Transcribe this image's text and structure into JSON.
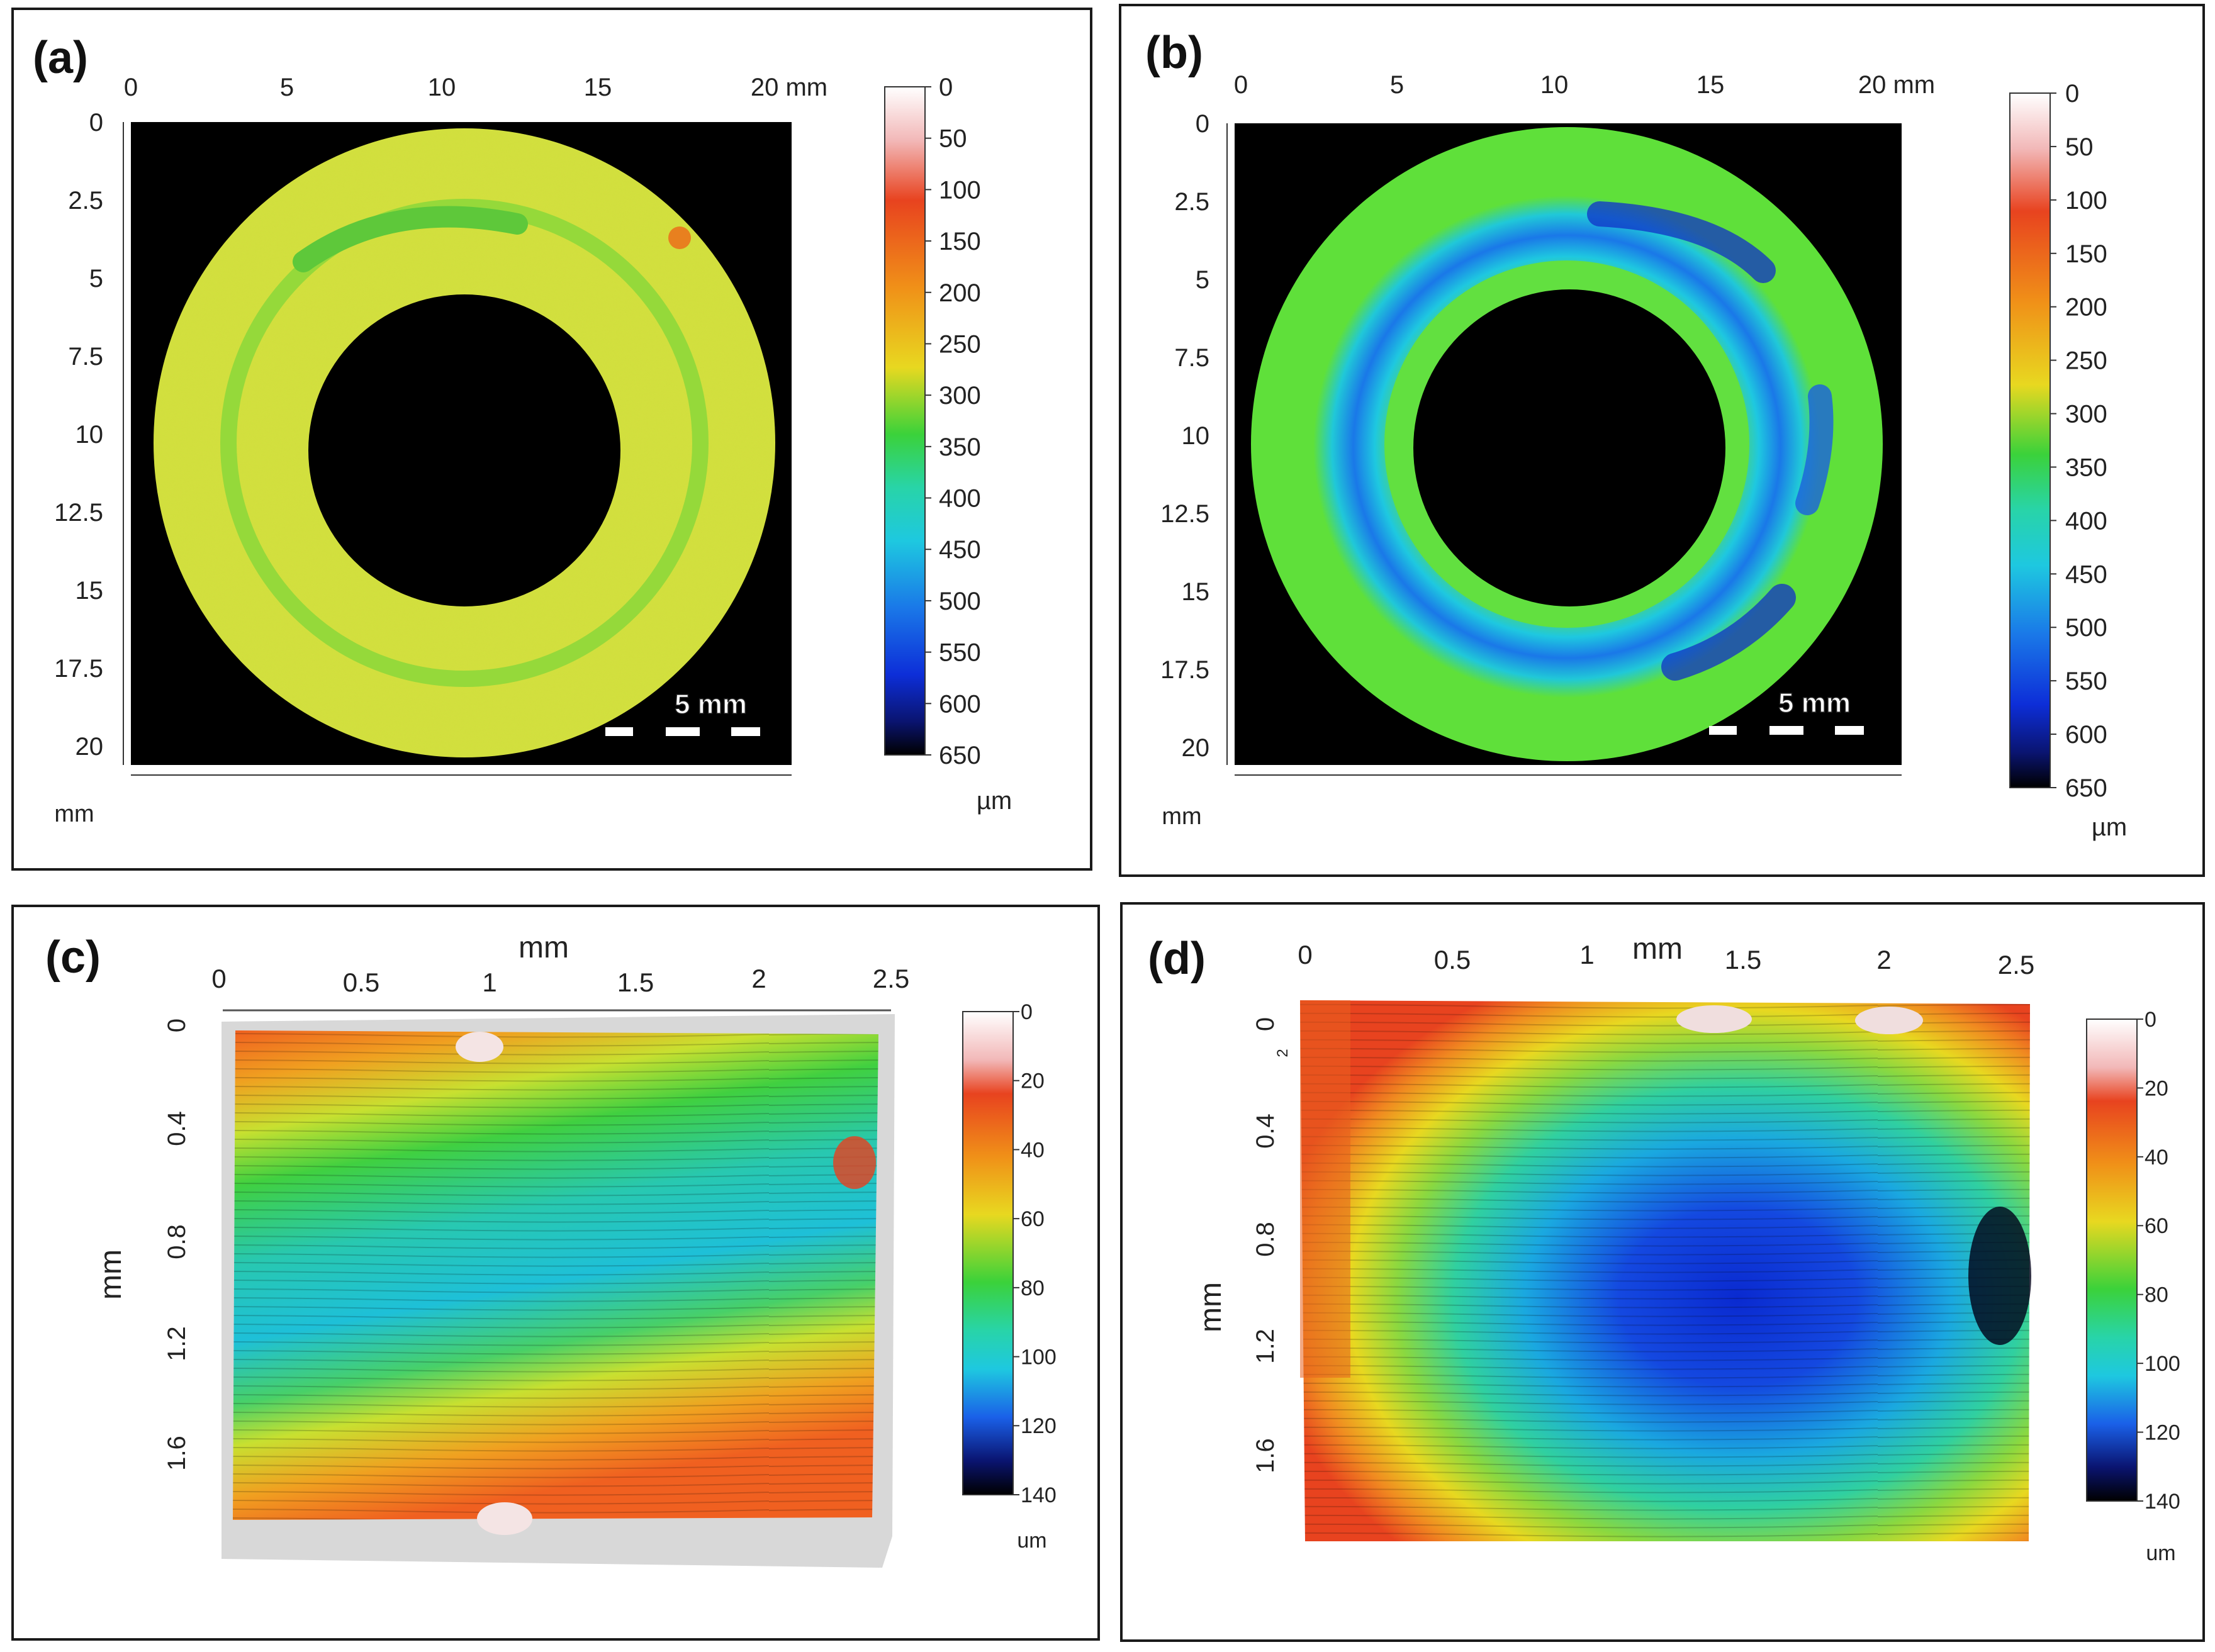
{
  "panels": [
    {
      "label": "(a)",
      "x_ticks": [
        "0",
        "5",
        "10",
        "15",
        "20 mm"
      ],
      "y_ticks": [
        "0",
        "2.5",
        "5",
        "7.5",
        "10",
        "12.5",
        "15",
        "17.5",
        "20"
      ],
      "y_unit": "mm",
      "scale_bar": "5 mm",
      "colorbar_ticks": [
        "0",
        "50",
        "100",
        "150",
        "200",
        "250",
        "300",
        "350",
        "400",
        "450",
        "500",
        "550",
        "600",
        "650"
      ],
      "colorbar_unit": "µm"
    },
    {
      "label": "(b)",
      "x_ticks": [
        "0",
        "5",
        "10",
        "15",
        "20 mm"
      ],
      "y_ticks": [
        "0",
        "2.5",
        "5",
        "7.5",
        "10",
        "12.5",
        "15",
        "17.5",
        "20"
      ],
      "y_unit": "mm",
      "scale_bar": "5 mm",
      "colorbar_ticks": [
        "0",
        "50",
        "100",
        "150",
        "200",
        "250",
        "300",
        "350",
        "400",
        "450",
        "500",
        "550",
        "600",
        "650"
      ],
      "colorbar_unit": "µm"
    },
    {
      "label": "(c)",
      "x_title": "mm",
      "x_ticks": [
        "0",
        "0.5",
        "1",
        "1.5",
        "2",
        "2.5"
      ],
      "y_title": "mm",
      "y_ticks": [
        "0",
        "0.4",
        "0.8",
        "1.2",
        "1.6"
      ],
      "colorbar_ticks": [
        "0",
        "20",
        "40",
        "60",
        "80",
        "100",
        "120",
        "140"
      ],
      "colorbar_unit": "um"
    },
    {
      "label": "(d)",
      "x_title": "mm",
      "x_ticks": [
        "0",
        "0.5",
        "1",
        "1.5",
        "2",
        "2.5"
      ],
      "y_title": "mm",
      "y_ticks": [
        "0",
        "0.4",
        "0.8",
        "1.2",
        "1.6"
      ],
      "y_extra_tick": "2",
      "colorbar_ticks": [
        "0",
        "20",
        "40",
        "60",
        "80",
        "100",
        "120",
        "140"
      ],
      "colorbar_unit": "um"
    }
  ],
  "colors": {
    "height_colormap": [
      "#f8f8f8",
      "#f2b8b8",
      "#e8431f",
      "#f09018",
      "#e8d820",
      "#cce63a",
      "#3bd23a",
      "#28d4a8",
      "#1ec8e0",
      "#1a78e8",
      "#0d2ed8",
      "#0a1470",
      "#000000"
    ],
    "surface_a": "#cce63a",
    "groove_a": "#8ed83a",
    "surface_b": "#6fe03a",
    "wear_b": "#1a8ae8"
  }
}
